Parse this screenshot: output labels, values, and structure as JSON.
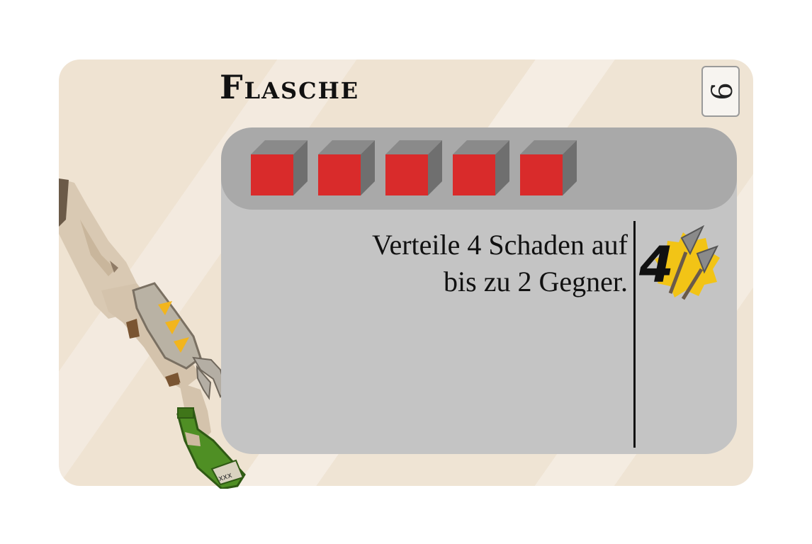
{
  "card": {
    "title": "Flasche",
    "cost": "9",
    "effect_line1": "Verteile 4 Schaden auf",
    "effect_line2": "bis zu 2 Gegner.",
    "damage_value": "4",
    "bottle_label": "xxx",
    "health_cubes": 5
  },
  "colors": {
    "cube_front": "#d92b2b",
    "cube_side": "#6f6f6f",
    "panel": "#c4c4c4",
    "panel_header": "#a9a9a9",
    "damage_burst": "#f2c416"
  }
}
